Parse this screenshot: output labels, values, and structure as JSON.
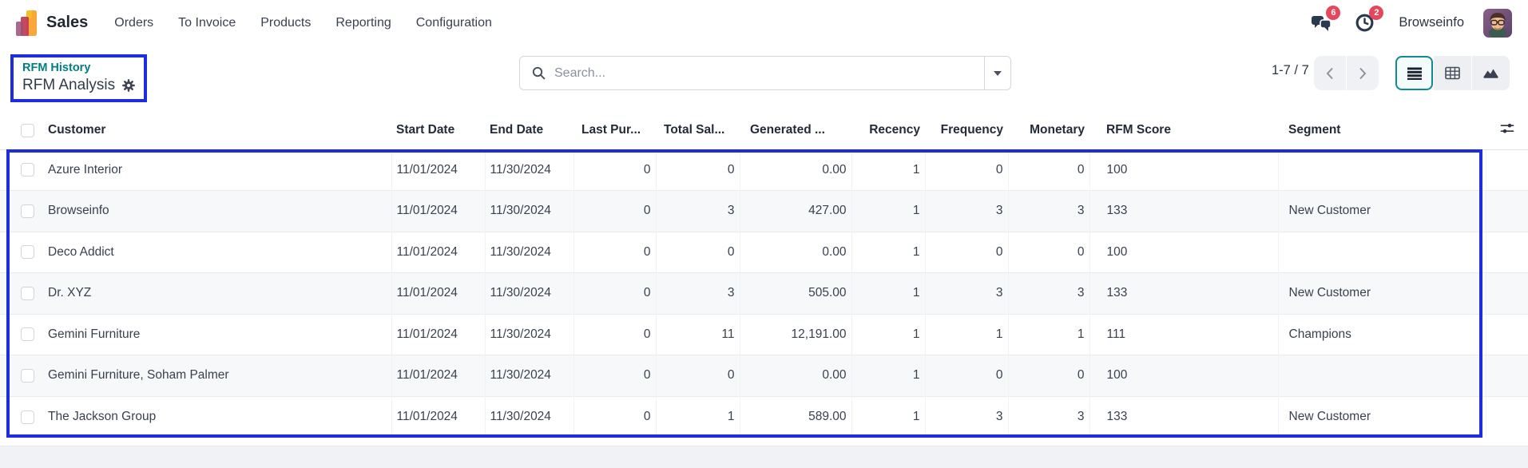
{
  "app": {
    "name": "Sales",
    "menus": [
      "Orders",
      "To Invoice",
      "Products",
      "Reporting",
      "Configuration"
    ]
  },
  "topbar": {
    "messages_badge": "6",
    "activities_badge": "2",
    "user": "Browseinfo"
  },
  "breadcrumb": {
    "parent": "RFM History",
    "title": "RFM Analysis"
  },
  "search": {
    "placeholder": "Search...",
    "value": ""
  },
  "pager": {
    "text": "1-7 / 7"
  },
  "view_switcher": {
    "active": "list",
    "views": [
      "list",
      "pivot",
      "graph"
    ]
  },
  "colors": {
    "annotation_blue": "#1e2ce0",
    "breadcrumb_teal": "#017e84",
    "badge_red": "#e5475c",
    "active_view_teal": "#0e8a90"
  },
  "table": {
    "columns": [
      {
        "name": "customer",
        "label": "Customer"
      },
      {
        "name": "start_date",
        "label": "Start Date"
      },
      {
        "name": "end_date",
        "label": "End Date"
      },
      {
        "name": "last_pur",
        "label": "Last Pur..."
      },
      {
        "name": "total_sal",
        "label": "Total Sal..."
      },
      {
        "name": "generated",
        "label": "Generated ..."
      },
      {
        "name": "recency",
        "label": "Recency"
      },
      {
        "name": "frequency",
        "label": "Frequency"
      },
      {
        "name": "monetary",
        "label": "Monetary"
      },
      {
        "name": "rfm_score",
        "label": "RFM Score"
      },
      {
        "name": "segment",
        "label": "Segment"
      }
    ],
    "rows": [
      [
        "Azure Interior",
        "11/01/2024",
        "11/30/2024",
        "0",
        "0",
        "0.00",
        "1",
        "0",
        "0",
        "100",
        ""
      ],
      [
        "Browseinfo",
        "11/01/2024",
        "11/30/2024",
        "0",
        "3",
        "427.00",
        "1",
        "3",
        "3",
        "133",
        "New Customer"
      ],
      [
        "Deco Addict",
        "11/01/2024",
        "11/30/2024",
        "0",
        "0",
        "0.00",
        "1",
        "0",
        "0",
        "100",
        ""
      ],
      [
        "Dr. XYZ",
        "11/01/2024",
        "11/30/2024",
        "0",
        "3",
        "505.00",
        "1",
        "3",
        "3",
        "133",
        "New Customer"
      ],
      [
        "Gemini Furniture",
        "11/01/2024",
        "11/30/2024",
        "0",
        "11",
        "12,191.00",
        "1",
        "1",
        "1",
        "111",
        "Champions"
      ],
      [
        "Gemini Furniture, Soham Palmer",
        "11/01/2024",
        "11/30/2024",
        "0",
        "0",
        "0.00",
        "1",
        "0",
        "0",
        "100",
        ""
      ],
      [
        "The Jackson Group",
        "11/01/2024",
        "11/30/2024",
        "0",
        "1",
        "589.00",
        "1",
        "3",
        "3",
        "133",
        "New Customer"
      ]
    ]
  }
}
